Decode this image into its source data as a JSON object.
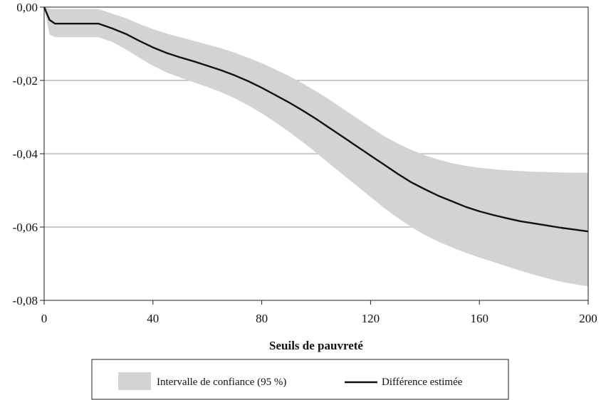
{
  "chart_data": {
    "type": "line",
    "title": "",
    "xlabel": "Seuils de pauvreté",
    "ylabel": "",
    "xlim": [
      0,
      200
    ],
    "ylim": [
      -0.08,
      0.0
    ],
    "x_ticks": [
      0,
      40,
      80,
      120,
      160,
      200
    ],
    "x_tick_labels": [
      "0",
      "40",
      "80",
      "120",
      "160",
      "200"
    ],
    "y_ticks": [
      0.0,
      -0.02,
      -0.04,
      -0.06,
      -0.08
    ],
    "y_tick_labels": [
      "0,00",
      "-0,02",
      "-0,04",
      "-0,06",
      "-0,08"
    ],
    "grid": "horizontal",
    "legend_placement": "bottom",
    "colors": {
      "band": "#d3d3d3",
      "line": "#111111",
      "grid": "#999999"
    },
    "x": [
      0,
      2,
      4,
      10,
      15,
      20,
      25,
      30,
      35,
      40,
      45,
      50,
      55,
      60,
      65,
      70,
      75,
      80,
      85,
      90,
      95,
      100,
      105,
      110,
      115,
      120,
      125,
      130,
      135,
      140,
      145,
      150,
      155,
      160,
      165,
      170,
      175,
      180,
      185,
      190,
      195,
      200
    ],
    "series": [
      {
        "name": "Différence estimée",
        "style": "line",
        "values": [
          0.0,
          -0.0035,
          -0.0045,
          -0.0045,
          -0.0045,
          -0.0045,
          -0.0058,
          -0.0073,
          -0.0092,
          -0.011,
          -0.0125,
          -0.0137,
          -0.0148,
          -0.016,
          -0.0172,
          -0.0186,
          -0.0202,
          -0.022,
          -0.024,
          -0.026,
          -0.0282,
          -0.0305,
          -0.033,
          -0.0355,
          -0.038,
          -0.0405,
          -0.043,
          -0.0455,
          -0.0478,
          -0.0497,
          -0.0515,
          -0.053,
          -0.0545,
          -0.0557,
          -0.0567,
          -0.0576,
          -0.0584,
          -0.059,
          -0.0596,
          -0.0602,
          -0.0607,
          -0.0612
        ]
      },
      {
        "name": "Intervalle de confiance (95 %)",
        "style": "band",
        "lower": [
          0.0,
          -0.0075,
          -0.0082,
          -0.0082,
          -0.0082,
          -0.0082,
          -0.0095,
          -0.0115,
          -0.0138,
          -0.016,
          -0.0178,
          -0.0192,
          -0.0205,
          -0.0218,
          -0.0232,
          -0.0248,
          -0.0268,
          -0.029,
          -0.0314,
          -0.034,
          -0.0368,
          -0.0397,
          -0.0428,
          -0.0458,
          -0.0488,
          -0.0518,
          -0.0548,
          -0.0575,
          -0.06,
          -0.0622,
          -0.064,
          -0.0656,
          -0.067,
          -0.0683,
          -0.0695,
          -0.0707,
          -0.0719,
          -0.073,
          -0.074,
          -0.0749,
          -0.0756,
          -0.0762
        ],
        "upper": [
          0.0,
          -0.0005,
          -0.0005,
          -0.0005,
          -0.0005,
          -0.0005,
          -0.0018,
          -0.003,
          -0.0046,
          -0.006,
          -0.0072,
          -0.0082,
          -0.0092,
          -0.0102,
          -0.0112,
          -0.0124,
          -0.0138,
          -0.0153,
          -0.017,
          -0.0188,
          -0.0208,
          -0.023,
          -0.0253,
          -0.0278,
          -0.0303,
          -0.0328,
          -0.0352,
          -0.0372,
          -0.039,
          -0.0404,
          -0.0416,
          -0.0426,
          -0.0433,
          -0.0438,
          -0.0442,
          -0.0445,
          -0.0447,
          -0.0449,
          -0.045,
          -0.0451,
          -0.0452,
          -0.0452
        ]
      }
    ],
    "legend": {
      "band_label": "Intervalle de confiance (95 %)",
      "line_label": "Différence estimée"
    }
  }
}
